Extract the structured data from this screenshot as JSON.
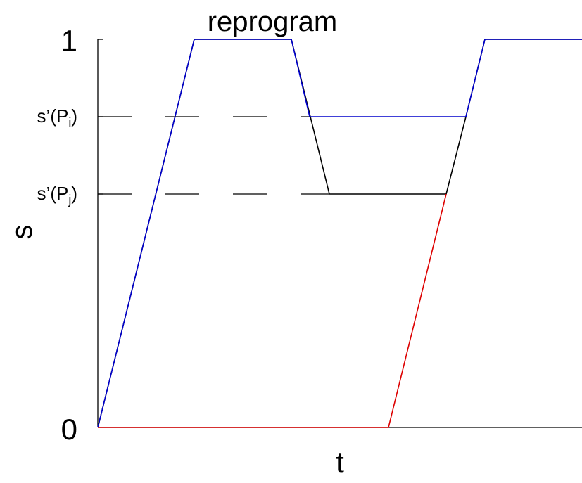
{
  "title": "reprogram",
  "xlabel": "t",
  "ylabel": "s",
  "ticks": {
    "one": "1",
    "zero": "0",
    "spi": {
      "main": "s’(P",
      "sub": "i",
      "close": ")"
    },
    "spj": {
      "main": "s’(P",
      "sub": "j",
      "close": ")"
    }
  },
  "colors": {
    "axis": "#000000",
    "blue": "#0000cc",
    "red": "#dd0000",
    "black": "#000000"
  }
}
